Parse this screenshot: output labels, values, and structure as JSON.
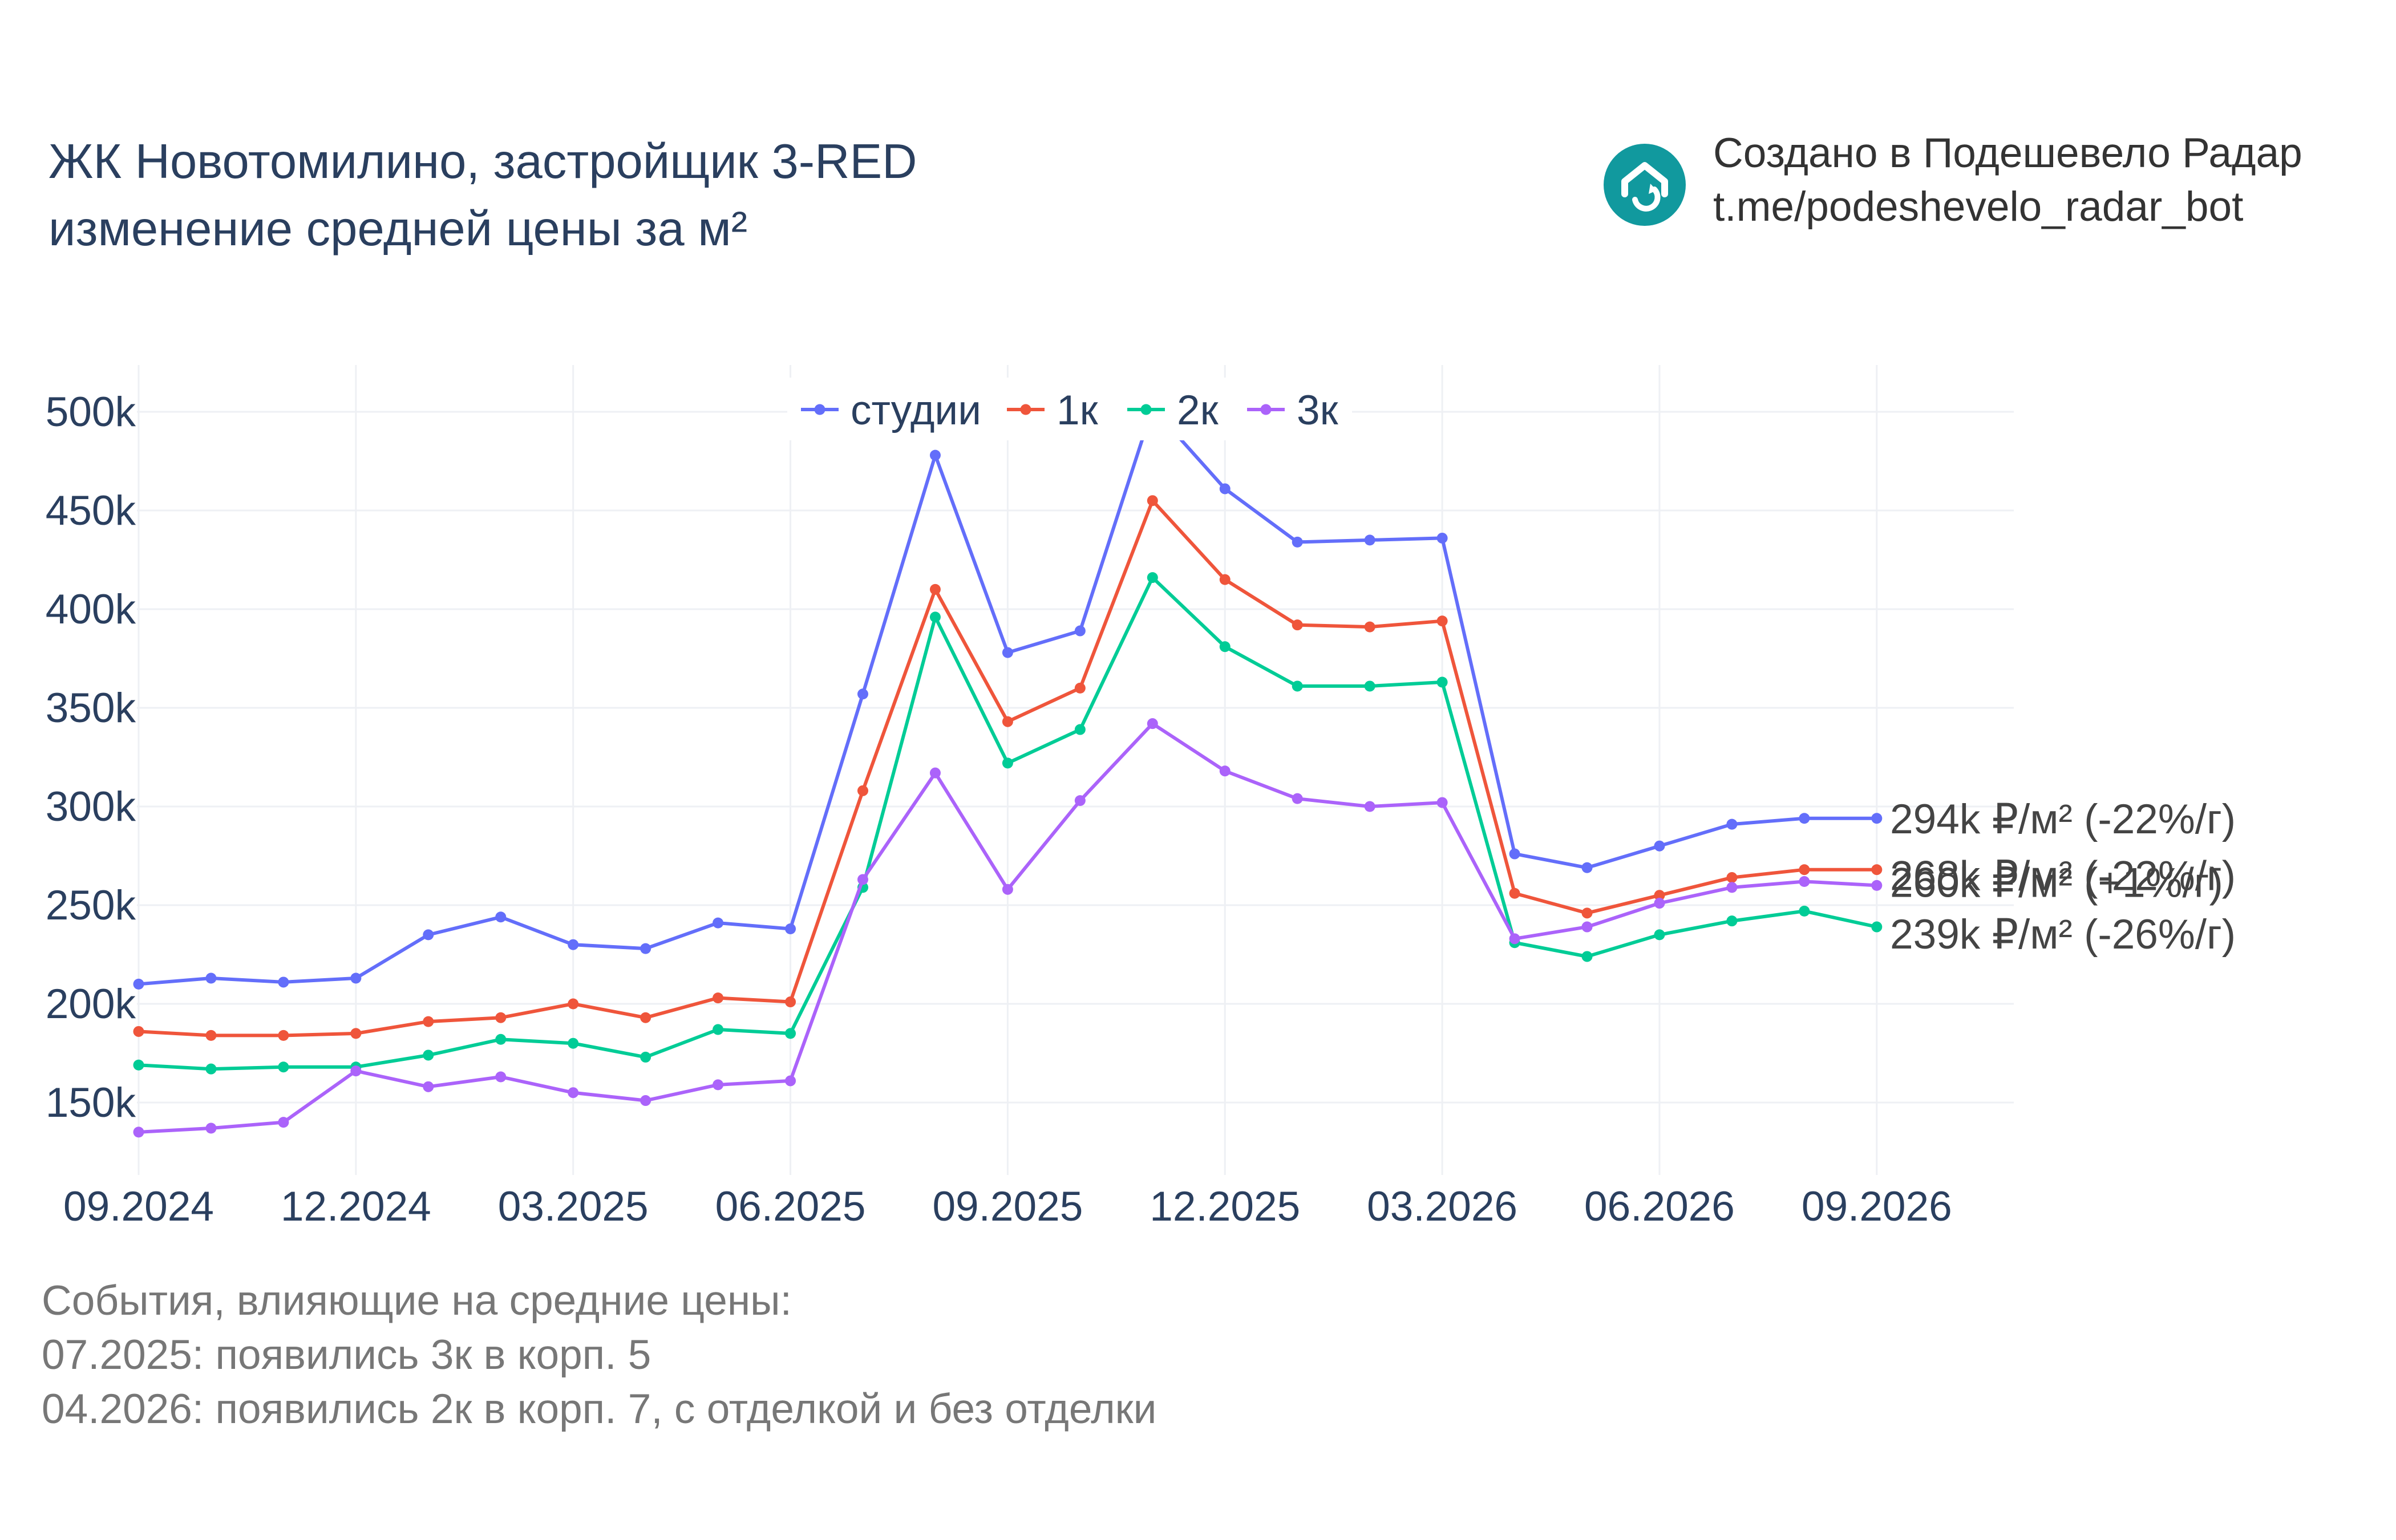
{
  "title": {
    "line1": "ЖК Новотомилино, застройщик 3-RED",
    "line2": "изменение средней цены за м²"
  },
  "brand": {
    "line1": "Создано в Подешевело Радар",
    "line2": "t.me/podeshevelo_radar_bot",
    "icon": "house-icon",
    "color": "#11999e"
  },
  "events": [
    "События, влияющие на средние цены:",
    "07.2025: появились 3к в корп. 5",
    "04.2026: появились 2к в корп. 7, с отделкой и без отделки"
  ],
  "chart_data": {
    "type": "line",
    "x": [
      "09.2024",
      "10.2024",
      "11.2024",
      "12.2024",
      "01.2025",
      "02.2025",
      "03.2025",
      "04.2025",
      "05.2025",
      "06.2025",
      "07.2025",
      "08.2025",
      "09.2025",
      "10.2025",
      "11.2025",
      "12.2025",
      "01.2026",
      "02.2026",
      "03.2026",
      "04.2026",
      "05.2026",
      "06.2026",
      "07.2026",
      "08.2026",
      "09.2026"
    ],
    "x_tick_labels": [
      "09.2024",
      "12.2024",
      "03.2025",
      "06.2025",
      "09.2025",
      "12.2025",
      "03.2026",
      "06.2026",
      "09.2026"
    ],
    "y_tick_labels": [
      "150k",
      "200k",
      "250k",
      "300k",
      "350k",
      "400k",
      "450k",
      "500k"
    ],
    "y_ticks": [
      150000,
      200000,
      250000,
      300000,
      350000,
      400000,
      450000,
      500000
    ],
    "ylim": [
      120000,
      525000
    ],
    "grid": true,
    "legend_position": "top-center",
    "series": [
      {
        "name": "студии",
        "color": "#636efa",
        "values": [
          210000,
          213000,
          211000,
          213000,
          235000,
          244000,
          230000,
          228000,
          241000,
          238000,
          357000,
          478000,
          378000,
          389000,
          502000,
          461000,
          434000,
          435000,
          436000,
          276000,
          269000,
          280000,
          291000,
          294000,
          294000
        ],
        "end_label": "294k ₽/м² (-22%/г)"
      },
      {
        "name": "1к",
        "color": "#ef553b",
        "values": [
          186000,
          184000,
          184000,
          185000,
          191000,
          193000,
          200000,
          193000,
          203000,
          201000,
          308000,
          410000,
          343000,
          360000,
          455000,
          415000,
          392000,
          391000,
          394000,
          256000,
          246000,
          255000,
          264000,
          268000,
          268000
        ],
        "end_label": "268k ₽/м² (-22%/г)"
      },
      {
        "name": "2к",
        "color": "#00cc96",
        "values": [
          169000,
          167000,
          168000,
          168000,
          174000,
          182000,
          180000,
          173000,
          187000,
          185000,
          259000,
          396000,
          322000,
          339000,
          416000,
          381000,
          361000,
          361000,
          363000,
          231000,
          224000,
          235000,
          242000,
          247000,
          239000
        ],
        "end_label": "239k ₽/м² (-26%/г)"
      },
      {
        "name": "3к",
        "color": "#ab63fa",
        "values": [
          135000,
          137000,
          140000,
          166000,
          158000,
          163000,
          155000,
          151000,
          159000,
          161000,
          263000,
          317000,
          258000,
          303000,
          342000,
          318000,
          304000,
          300000,
          302000,
          233000,
          239000,
          251000,
          259000,
          262000,
          260000
        ],
        "end_label": "260k ₽/м² (+1%/г)"
      }
    ]
  }
}
